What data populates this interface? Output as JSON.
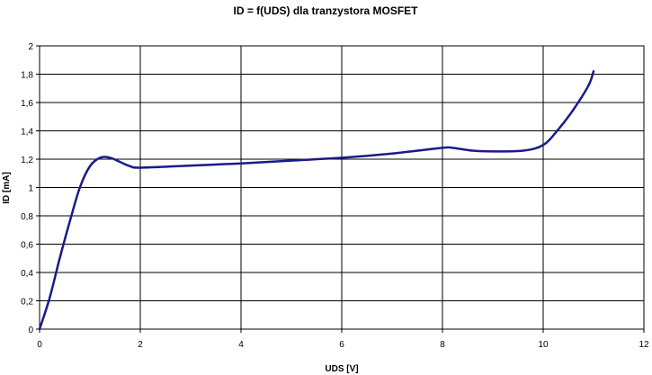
{
  "chart_data": {
    "type": "line",
    "title": "ID = f(UDS) dla tranzystora MOSFET",
    "xlabel": "UDS [V]",
    "ylabel": "ID [mA]",
    "xlim": [
      0,
      12
    ],
    "ylim": [
      0,
      2
    ],
    "x_ticks": [
      "0",
      "2",
      "4",
      "6",
      "8",
      "10",
      "12"
    ],
    "y_ticks": [
      "0",
      "0,2",
      "0,4",
      "0,6",
      "0,8",
      "1",
      "1,2",
      "1,4",
      "1,6",
      "1,8",
      "2"
    ],
    "grid": "major gridlines on both axes",
    "series": [
      {
        "color": "#1a1a8a",
        "x": [
          0,
          0.2,
          0.4,
          0.6,
          0.8,
          1.0,
          1.2,
          1.4,
          1.6,
          1.8,
          2.0,
          3.0,
          4.0,
          5.0,
          6.0,
          7.0,
          8.0,
          8.2,
          8.6,
          9.0,
          9.6,
          10.0,
          10.3,
          10.6,
          10.9,
          11.0
        ],
        "y": [
          0,
          0.22,
          0.5,
          0.76,
          1.0,
          1.15,
          1.21,
          1.21,
          1.18,
          1.15,
          1.14,
          1.155,
          1.17,
          1.19,
          1.21,
          1.24,
          1.28,
          1.28,
          1.26,
          1.255,
          1.26,
          1.3,
          1.41,
          1.55,
          1.72,
          1.82
        ]
      }
    ]
  }
}
